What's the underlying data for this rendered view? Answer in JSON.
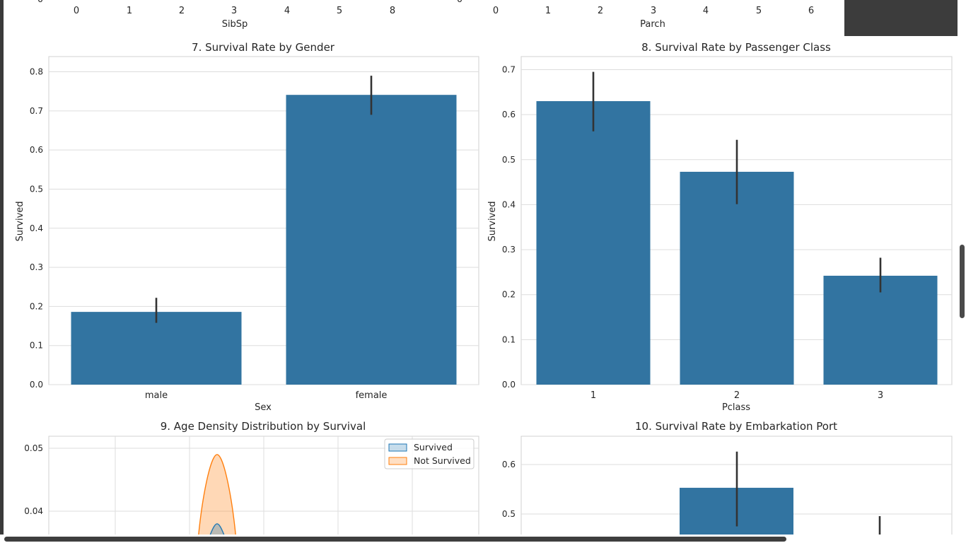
{
  "top_partial": {
    "left": {
      "xlabel": "SibSp",
      "ticks": [
        "0",
        "1",
        "2",
        "3",
        "4",
        "5",
        "8"
      ],
      "cut_tick": "0"
    },
    "right": {
      "xlabel": "Parch",
      "ticks": [
        "0",
        "1",
        "2",
        "3",
        "4",
        "5",
        "6"
      ],
      "cut_tick": "0"
    }
  },
  "colors": {
    "bar": "#3274a1",
    "errbar": "#333333",
    "orange": "#ff7f0e",
    "blue": "#1f77b4",
    "grid": "#dddddd"
  },
  "chart_data": [
    {
      "type": "bar",
      "title": "7. Survival Rate by Gender",
      "xlabel": "Sex",
      "ylabel": "Survived",
      "categories": [
        "male",
        "female"
      ],
      "values": [
        0.186,
        0.741
      ],
      "ci": [
        [
          0.158,
          0.222
        ],
        [
          0.69,
          0.79
        ]
      ],
      "ylim": [
        0,
        0.82
      ],
      "yticks": [
        "0.0",
        "0.1",
        "0.2",
        "0.3",
        "0.4",
        "0.5",
        "0.6",
        "0.7",
        "0.8"
      ],
      "grid": true
    },
    {
      "type": "bar",
      "title": "8. Survival Rate by Passenger Class",
      "xlabel": "Pclass",
      "ylabel": "Survived",
      "categories": [
        "1",
        "2",
        "3"
      ],
      "values": [
        0.63,
        0.473,
        0.242
      ],
      "ci": [
        [
          0.563,
          0.695
        ],
        [
          0.401,
          0.544
        ],
        [
          0.205,
          0.282
        ]
      ],
      "ylim": [
        0,
        0.7
      ],
      "yticks": [
        "0.0",
        "0.1",
        "0.2",
        "0.3",
        "0.4",
        "0.5",
        "0.6",
        "0.7"
      ],
      "grid": true
    },
    {
      "type": "area",
      "title": "9. Age Density Distribution by Survival",
      "series": [
        {
          "name": "Survived",
          "peak_x": 0,
          "peak_y": 0.038
        },
        {
          "name": "Not Survived",
          "peak_x": 0,
          "peak_y": 0.049
        }
      ],
      "yticks": [
        "0.05",
        "0.04"
      ],
      "legend": "top-right",
      "grid": true
    },
    {
      "type": "bar",
      "title": "10. Survival Rate by Embarkation Port",
      "values": [
        0.553
      ],
      "ci": [
        [
          0.475,
          0.626
        ]
      ],
      "yticks": [
        "0.6",
        "0.5"
      ],
      "grid": true
    }
  ]
}
